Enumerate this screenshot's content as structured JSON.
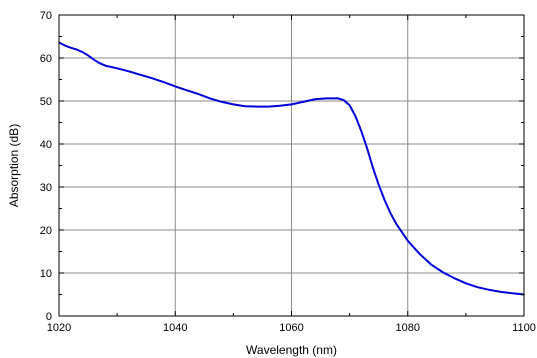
{
  "chart_data": {
    "type": "line",
    "title": "",
    "xlabel": "Wavelength (nm)",
    "ylabel": "Absorption (dB)",
    "xlim": [
      1020,
      1100
    ],
    "ylim": [
      0,
      70
    ],
    "xticks": [
      1020,
      1040,
      1060,
      1080,
      1100
    ],
    "yticks": [
      0,
      10,
      20,
      30,
      40,
      50,
      60,
      70
    ],
    "grid": true,
    "series": [
      {
        "color": "#0000dd",
        "x": [
          1020,
          1021,
          1022,
          1023,
          1024,
          1025,
          1026,
          1027,
          1028,
          1030,
          1032,
          1034,
          1036,
          1038,
          1040,
          1042,
          1044,
          1046,
          1048,
          1050,
          1052,
          1054,
          1056,
          1058,
          1060,
          1062,
          1064,
          1066,
          1068,
          1069,
          1070,
          1071,
          1072,
          1073,
          1074,
          1075,
          1076,
          1077,
          1078,
          1080,
          1082,
          1084,
          1086,
          1088,
          1090,
          1092,
          1094,
          1096,
          1098,
          1100
        ],
        "y": [
          63.6,
          62.9,
          62.4,
          62.0,
          61.4,
          60.6,
          59.6,
          58.8,
          58.2,
          57.6,
          56.9,
          56.1,
          55.3,
          54.4,
          53.4,
          52.5,
          51.6,
          50.6,
          49.8,
          49.2,
          48.8,
          48.7,
          48.7,
          48.9,
          49.2,
          49.8,
          50.4,
          50.6,
          50.6,
          50.2,
          49.0,
          46.5,
          43.0,
          39.0,
          34.5,
          30.5,
          27.0,
          24.0,
          21.5,
          17.5,
          14.5,
          12.0,
          10.2,
          8.8,
          7.6,
          6.7,
          6.1,
          5.6,
          5.3,
          5.0
        ]
      }
    ]
  }
}
